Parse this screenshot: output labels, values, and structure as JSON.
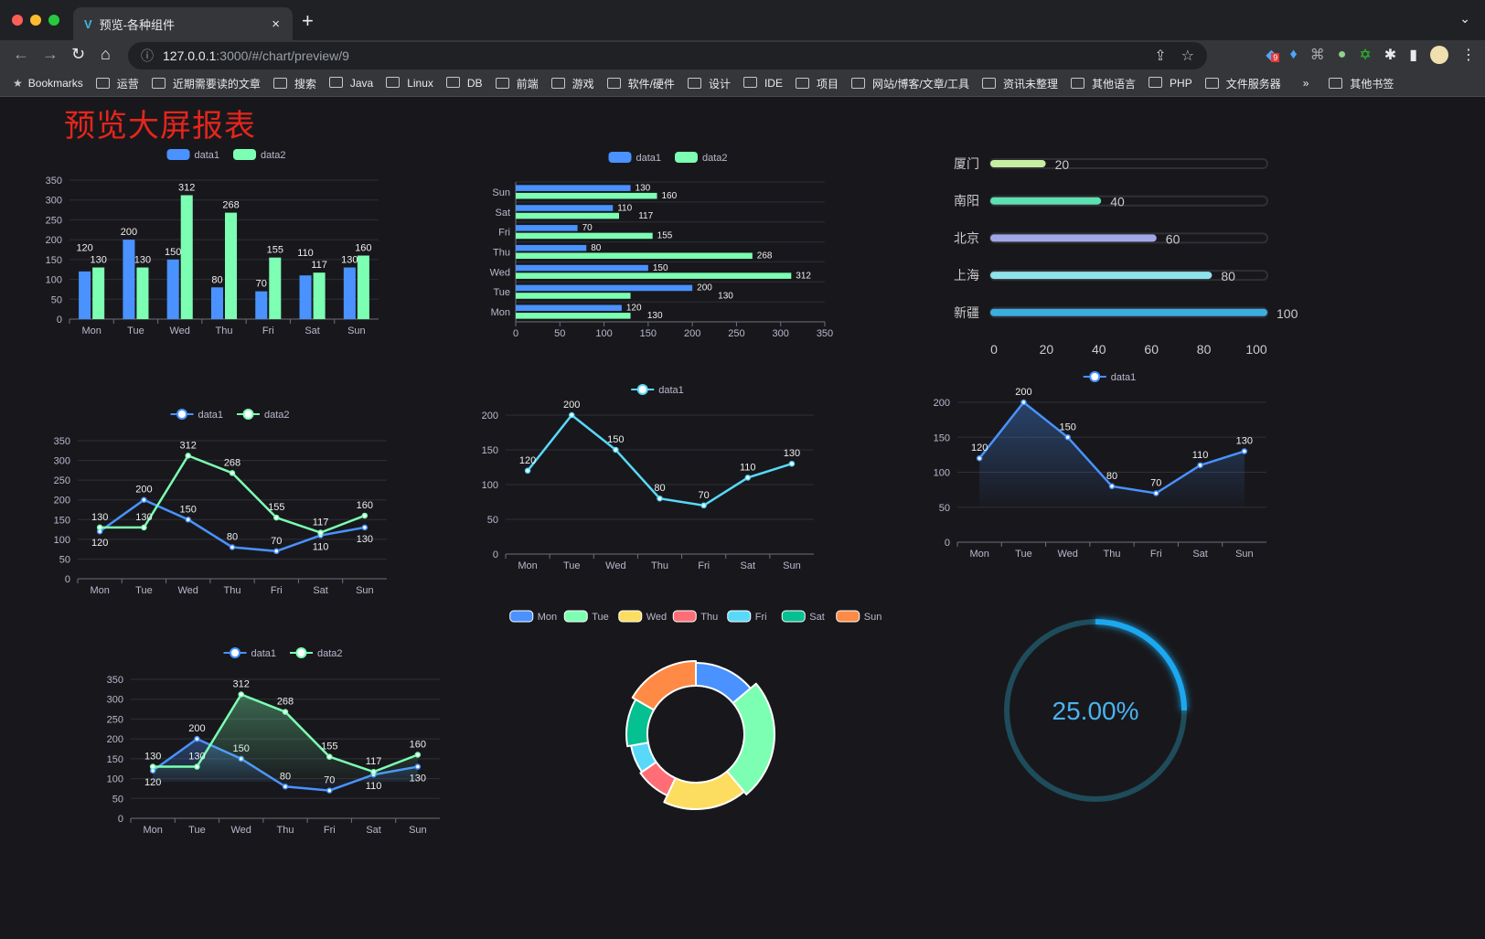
{
  "browser": {
    "tab_title": "预览-各种组件",
    "tab_close": "×",
    "new_tab": "+",
    "tab_menu": "⌄",
    "url_host": "127.0.0.1",
    "url_rest": ":3000/#/chart/preview/9",
    "extension_badge": "9",
    "bookmarks": [
      "Bookmarks",
      "运营",
      "近期需要读的文章",
      "搜索",
      "Java",
      "Linux",
      "DB",
      "前端",
      "游戏",
      "软件/硬件",
      "设计",
      "IDE",
      "项目",
      "网站/博客/文章/工具",
      "资讯未整理",
      "其他语言",
      "PHP",
      "文件服务器"
    ],
    "bookmarks_more": "»",
    "other_bookmarks": "其他书签"
  },
  "page": {
    "title": "预览大屏报表",
    "title_color": "#e5251c"
  },
  "colors": {
    "data1": "#4992ff",
    "data2": "#7cffb2",
    "pie": [
      "#4992ff",
      "#7cffb2",
      "#fddd60",
      "#ff6e76",
      "#58d9f9",
      "#05c091",
      "#ff8a45"
    ],
    "progress": [
      "#c6eea0",
      "#5ee0b0",
      "#a0a7e6",
      "#8fe3ea",
      "#3baee0"
    ],
    "gauge": "#1ea8f0"
  },
  "chart_data": [
    {
      "type": "bar",
      "categories": [
        "Mon",
        "Tue",
        "Wed",
        "Thu",
        "Fri",
        "Sat",
        "Sun"
      ],
      "series": [
        {
          "name": "data1",
          "values": [
            120,
            200,
            150,
            80,
            70,
            110,
            130
          ]
        },
        {
          "name": "data2",
          "values": [
            130,
            130,
            312,
            268,
            155,
            117,
            160
          ]
        }
      ],
      "ylim": [
        0,
        350
      ],
      "yticks": [
        0,
        50,
        100,
        150,
        200,
        250,
        300,
        350
      ],
      "legend": "top",
      "grid": true
    },
    {
      "type": "bar",
      "orientation": "horizontal",
      "categories": [
        "Mon",
        "Tue",
        "Wed",
        "Thu",
        "Fri",
        "Sat",
        "Sun"
      ],
      "series": [
        {
          "name": "data1",
          "values": [
            120,
            200,
            150,
            80,
            70,
            110,
            130
          ]
        },
        {
          "name": "data2",
          "values": [
            130,
            130,
            312,
            268,
            155,
            117,
            160
          ]
        }
      ],
      "xlim": [
        0,
        350
      ],
      "xticks": [
        0,
        50,
        100,
        150,
        200,
        250,
        300,
        350
      ],
      "legend": "top",
      "grid": true
    },
    {
      "type": "bar",
      "orientation": "horizontal",
      "subtype": "progress",
      "categories": [
        "厦门",
        "南阳",
        "北京",
        "上海",
        "新疆"
      ],
      "values": [
        20,
        40,
        60,
        80,
        100
      ],
      "xlim": [
        0,
        100
      ],
      "xticks": [
        0,
        20,
        40,
        60,
        80,
        100
      ]
    },
    {
      "type": "line",
      "categories": [
        "Mon",
        "Tue",
        "Wed",
        "Thu",
        "Fri",
        "Sat",
        "Sun"
      ],
      "series": [
        {
          "name": "data1",
          "values": [
            120,
            200,
            150,
            80,
            70,
            110,
            130
          ]
        },
        {
          "name": "data2",
          "values": [
            130,
            130,
            312,
            268,
            155,
            117,
            160
          ]
        }
      ],
      "ylim": [
        0,
        350
      ],
      "yticks": [
        0,
        50,
        100,
        150,
        200,
        250,
        300,
        350
      ],
      "legend": "top",
      "grid": true
    },
    {
      "type": "line",
      "categories": [
        "Mon",
        "Tue",
        "Wed",
        "Thu",
        "Fri",
        "Sat",
        "Sun"
      ],
      "series": [
        {
          "name": "data1",
          "values": [
            120,
            200,
            150,
            80,
            70,
            110,
            130
          ]
        }
      ],
      "ylim": [
        0,
        200
      ],
      "yticks": [
        0,
        50,
        100,
        150,
        200
      ],
      "legend": "top",
      "grid": true
    },
    {
      "type": "area",
      "categories": [
        "Mon",
        "Tue",
        "Wed",
        "Thu",
        "Fri",
        "Sat",
        "Sun"
      ],
      "series": [
        {
          "name": "data1",
          "values": [
            120,
            200,
            150,
            80,
            70,
            110,
            130
          ]
        }
      ],
      "ylim": [
        0,
        200
      ],
      "yticks": [
        0,
        50,
        100,
        150,
        200
      ],
      "legend": "top",
      "grid": true
    },
    {
      "type": "area",
      "categories": [
        "Mon",
        "Tue",
        "Wed",
        "Thu",
        "Fri",
        "Sat",
        "Sun"
      ],
      "series": [
        {
          "name": "data1",
          "values": [
            120,
            200,
            150,
            80,
            70,
            110,
            130
          ]
        },
        {
          "name": "data2",
          "values": [
            130,
            130,
            312,
            268,
            155,
            117,
            160
          ]
        }
      ],
      "ylim": [
        0,
        350
      ],
      "yticks": [
        0,
        50,
        100,
        150,
        200,
        250,
        300,
        350
      ],
      "legend": "top",
      "grid": true
    },
    {
      "type": "pie",
      "subtype": "doughnut",
      "categories": [
        "Mon",
        "Tue",
        "Wed",
        "Thu",
        "Fri",
        "Sat",
        "Sun"
      ],
      "values": [
        50,
        90,
        65,
        30,
        25,
        40,
        60
      ],
      "legend": "top"
    },
    {
      "type": "gauge",
      "value": 25,
      "label": "25.00%"
    }
  ]
}
